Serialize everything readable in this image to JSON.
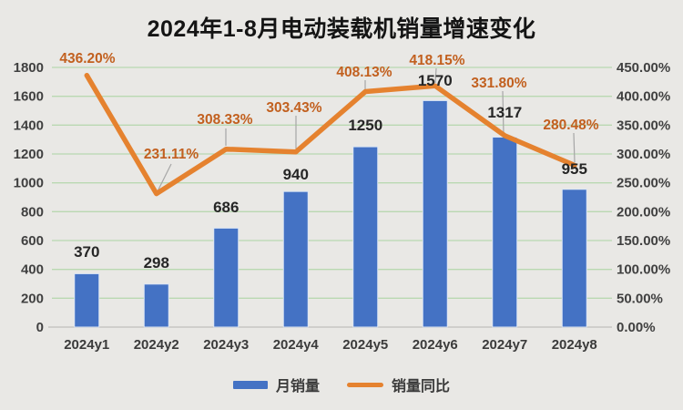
{
  "title": "2024年1-8月电动装载机销量增速变化",
  "colors": {
    "background": "#e9e8e5",
    "bar": "#4472C4",
    "bar_border": "#dce6f5",
    "line": "#E5822F",
    "pct_label": "#C2601F",
    "bar_value_label": "#262626",
    "axis_tick_label": "#404040",
    "x_axis_label": "#3b3b3b",
    "gridline": "#b9d8b1",
    "axis_line": "#cfcecb",
    "leader_line": "#a6a6a6"
  },
  "chart_data": {
    "type": "bar",
    "combo": "bar+line",
    "title": "2024年1-8月电动装载机销量增速变化",
    "categories": [
      "2024y1",
      "2024y2",
      "2024y3",
      "2024y4",
      "2024y5",
      "2024y6",
      "2024y7",
      "2024y8"
    ],
    "series": [
      {
        "name": "月销量",
        "type": "bar",
        "axis": "left",
        "values": [
          370,
          298,
          686,
          940,
          1250,
          1570,
          1317,
          955
        ],
        "value_labels": [
          "370",
          "298",
          "686",
          "940",
          "1250",
          "1570",
          "1317",
          "955"
        ]
      },
      {
        "name": "销量同比",
        "type": "line",
        "axis": "right",
        "values_percent": [
          436.2,
          231.11,
          308.33,
          303.43,
          408.13,
          418.15,
          331.8,
          280.48
        ],
        "value_labels": [
          "436.20%",
          "231.11%",
          "308.33%",
          "303.43%",
          "408.13%",
          "418.15%",
          "331.80%",
          "280.48%"
        ]
      }
    ],
    "left_axis": {
      "min": 0,
      "max": 1800,
      "step": 200,
      "tick_labels": [
        "0",
        "200",
        "400",
        "600",
        "800",
        "1000",
        "1200",
        "1400",
        "1600",
        "1800"
      ]
    },
    "right_axis": {
      "min": 0,
      "max": 450,
      "step": 50,
      "tick_labels": [
        "0.00%",
        "50.00%",
        "100.00%",
        "150.00%",
        "200.00%",
        "250.00%",
        "300.00%",
        "350.00%",
        "400.00%",
        "450.00%"
      ]
    },
    "grid": true,
    "legend_position": "bottom",
    "legend": [
      "月销量",
      "销量同比"
    ]
  },
  "legend": {
    "bar_label": "月销量",
    "line_label": "销量同比"
  }
}
